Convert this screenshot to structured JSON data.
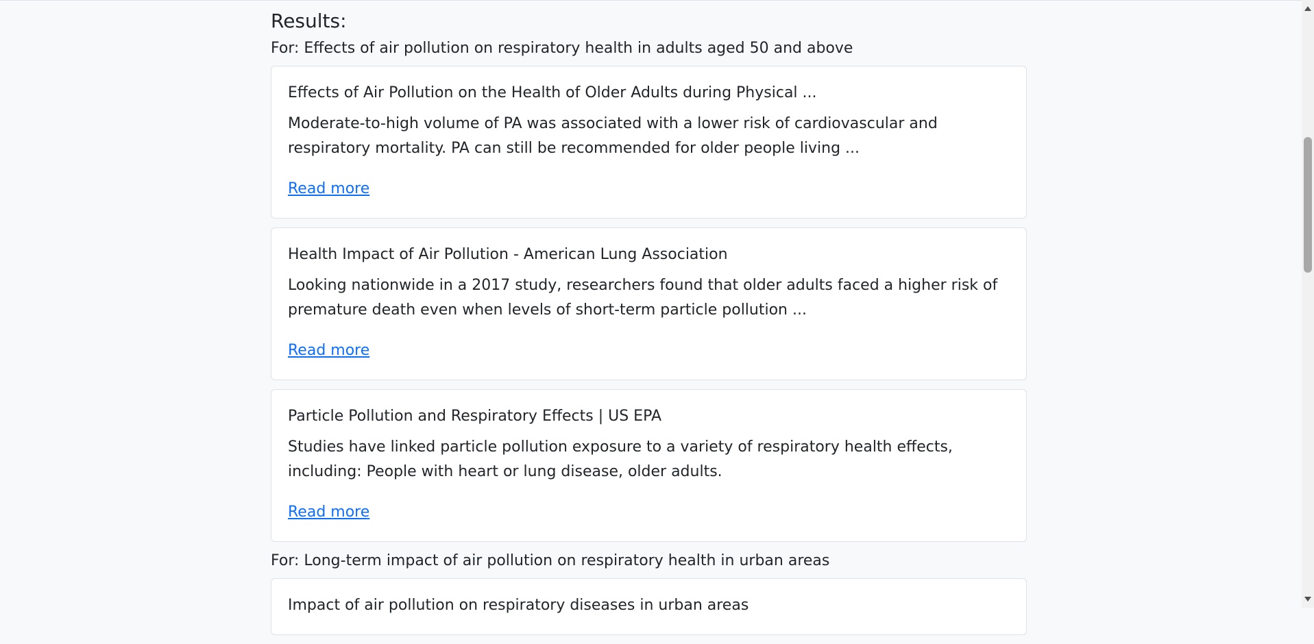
{
  "header": {
    "title": "Results:"
  },
  "groups": [
    {
      "query": "For: Effects of air pollution on respiratory health in adults aged 50 and above",
      "results": [
        {
          "title": "Effects of Air Pollution on the Health of Older Adults during Physical ...",
          "snippet": "Moderate-to-high volume of PA was associated with a lower risk of cardiovascular and respiratory mortality. PA can still be recommended for older people living ...",
          "link": "Read more"
        },
        {
          "title": "Health Impact of Air Pollution - American Lung Association",
          "snippet": "Looking nationwide in a 2017 study, researchers found that older adults faced a higher risk of premature death even when levels of short-term particle pollution ...",
          "link": "Read more"
        },
        {
          "title": "Particle Pollution and Respiratory Effects | US EPA",
          "snippet": "Studies have linked particle pollution exposure to a variety of respiratory health effects, including: People with heart or lung disease, older adults.",
          "link": "Read more"
        }
      ]
    },
    {
      "query": "For: Long-term impact of air pollution on respiratory health in urban areas",
      "results": [
        {
          "title": "Impact of air pollution on respiratory diseases in urban areas"
        }
      ]
    }
  ]
}
